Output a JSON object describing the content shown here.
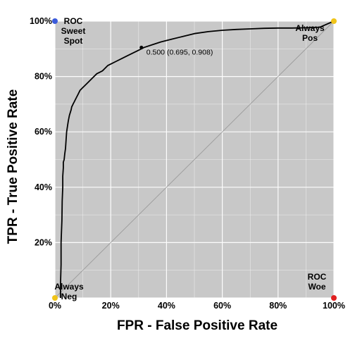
{
  "chart_data": {
    "type": "line",
    "xlabel": "FPR - False Positive Rate",
    "ylabel": "TPR - True Positive Rate",
    "xlim": [
      0,
      1
    ],
    "ylim": [
      0,
      1
    ],
    "x_ticks": [
      "0%",
      "20%",
      "40%",
      "60%",
      "80%",
      "100%"
    ],
    "y_ticks": [
      "20%",
      "40%",
      "60%",
      "80%",
      "100%"
    ],
    "grid": true,
    "background_color": "#c8c8c8",
    "series": [
      {
        "color": "#000000",
        "x": [
          0.02,
          0.02,
          0.022,
          0.022,
          0.025,
          0.026,
          0.028,
          0.028,
          0.03,
          0.03,
          0.033,
          0.035,
          0.038,
          0.04,
          0.042,
          0.045,
          0.048,
          0.05,
          0.052,
          0.055,
          0.058,
          0.06,
          0.065,
          0.07,
          0.075,
          0.08,
          0.085,
          0.09,
          0.1,
          0.11,
          0.12,
          0.13,
          0.14,
          0.15,
          0.16,
          0.17,
          0.175,
          0.18,
          0.19,
          0.2,
          0.22,
          0.24,
          0.26,
          0.28,
          0.3,
          0.32,
          0.35,
          0.38,
          0.42,
          0.46,
          0.5,
          0.55,
          0.6,
          0.65,
          0.7,
          0.75,
          0.8,
          0.85,
          0.9,
          0.95,
          1.0
        ],
        "y": [
          0.0,
          0.05,
          0.12,
          0.2,
          0.28,
          0.35,
          0.4,
          0.44,
          0.47,
          0.49,
          0.5,
          0.52,
          0.54,
          0.57,
          0.6,
          0.62,
          0.64,
          0.65,
          0.66,
          0.67,
          0.68,
          0.69,
          0.7,
          0.71,
          0.72,
          0.73,
          0.74,
          0.75,
          0.76,
          0.77,
          0.78,
          0.79,
          0.8,
          0.81,
          0.815,
          0.82,
          0.825,
          0.83,
          0.84,
          0.845,
          0.855,
          0.865,
          0.875,
          0.885,
          0.895,
          0.905,
          0.915,
          0.925,
          0.935,
          0.945,
          0.955,
          0.962,
          0.967,
          0.97,
          0.972,
          0.974,
          0.975,
          0.975,
          0.976,
          0.978,
          1.0
        ]
      },
      {
        "style": "diagonal",
        "color": "#9a9a9a",
        "x": [
          0,
          1
        ],
        "y": [
          0,
          1
        ]
      }
    ],
    "highlight_point": {
      "x": 0.31,
      "y": 0.905,
      "label": "0.500 (0.695, 0.908)"
    },
    "annotations": [
      {
        "text_lines": [
          "ROC",
          "Sweet",
          "Spot"
        ],
        "x": 0,
        "y": 1,
        "color": "#3b5bdb"
      },
      {
        "text_lines": [
          "Always",
          "Pos"
        ],
        "x": 1,
        "y": 1,
        "color": "#f0c419"
      },
      {
        "text_lines": [
          "Always",
          "Neg"
        ],
        "x": 0,
        "y": 0,
        "color": "#f0c419"
      },
      {
        "text_lines": [
          "ROC",
          "Woe"
        ],
        "x": 1,
        "y": 0,
        "color": "#e02020"
      }
    ]
  }
}
